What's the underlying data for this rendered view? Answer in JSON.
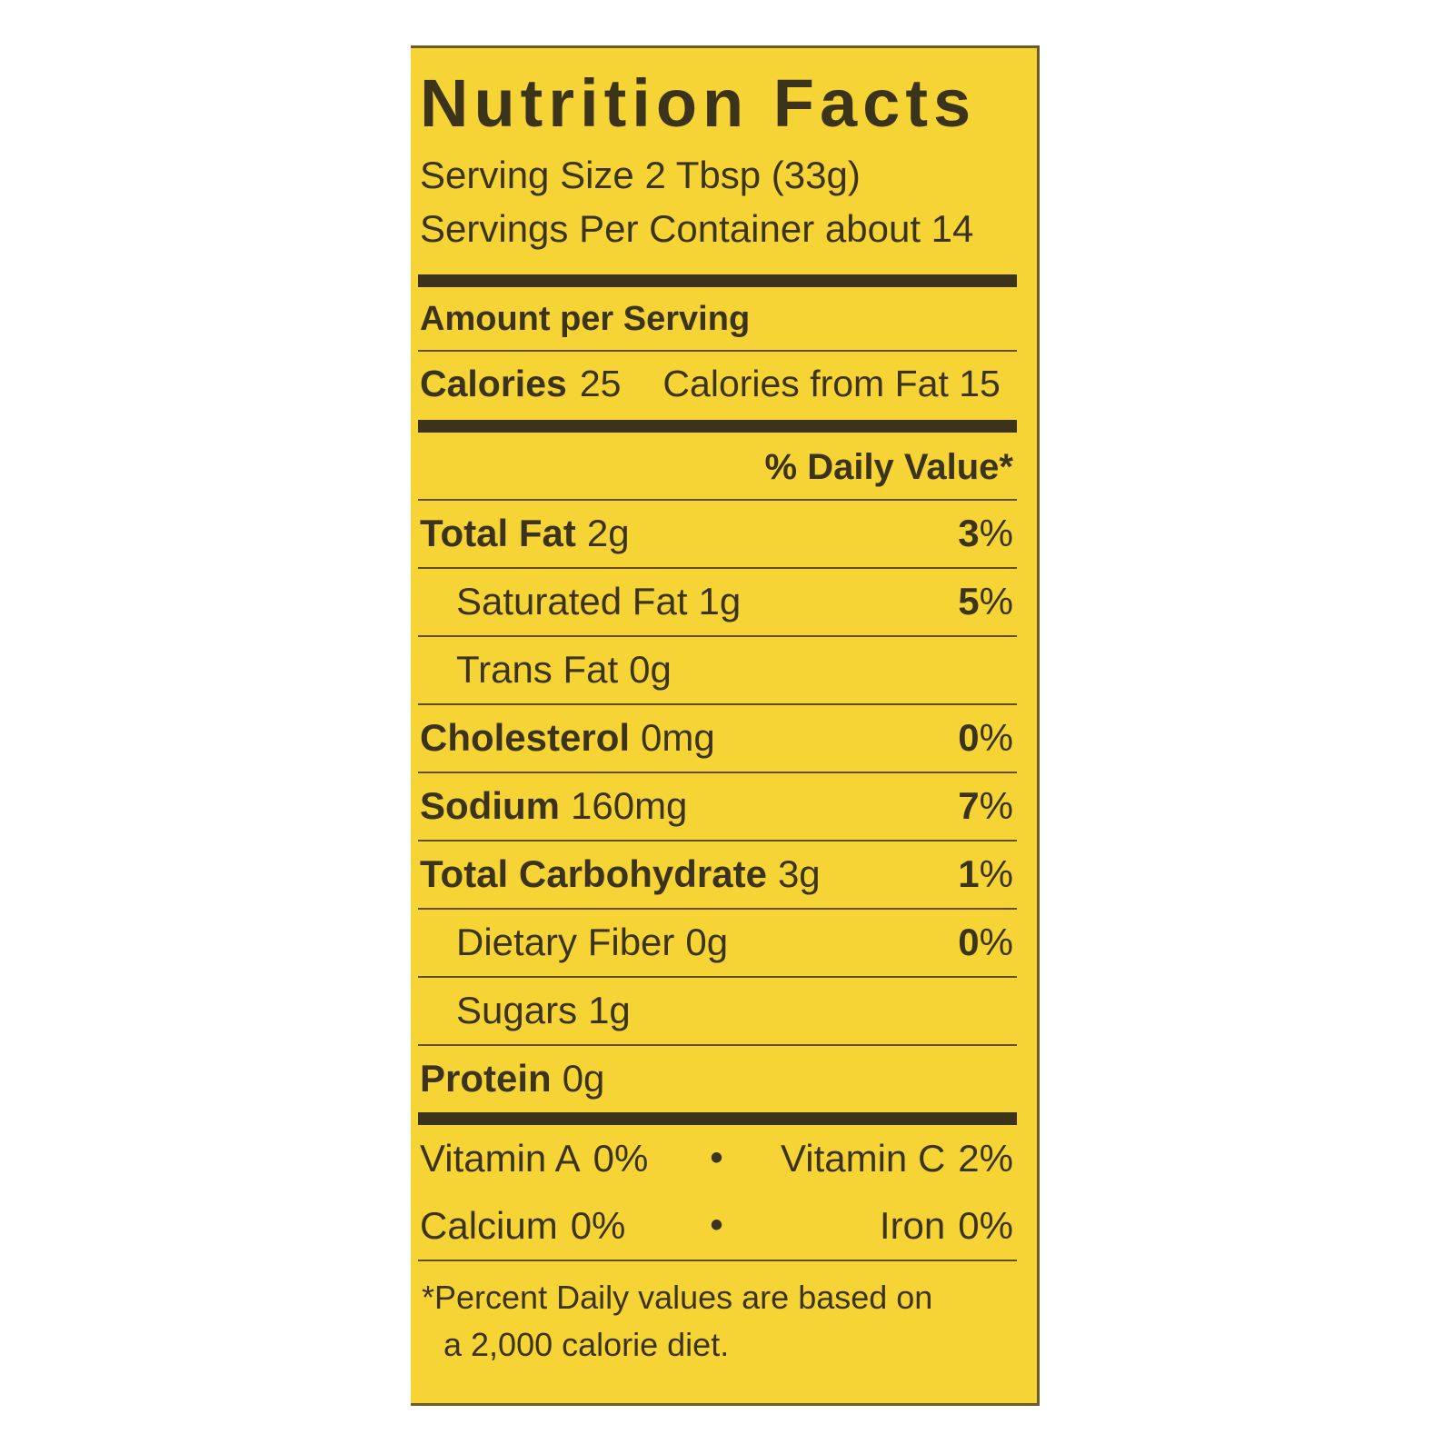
{
  "label": {
    "title": "Nutrition Facts",
    "serving_size": "Serving Size 2 Tbsp (33g)",
    "servings_per_container": "Servings Per Container about 14",
    "amount_per_serving": "Amount per Serving",
    "calories_label": "Calories",
    "calories_value": "25",
    "calories_from_fat": "Calories from Fat 15",
    "daily_value_header": "% Daily Value*",
    "percent_symbol": "%",
    "nutrients": [
      {
        "name": "Total Fat",
        "amount": "2g",
        "dv": "3"
      },
      {
        "name": "Saturated Fat",
        "amount": "1g",
        "dv": "5"
      },
      {
        "name": "Trans Fat",
        "amount": "0g",
        "dv": null
      },
      {
        "name": "Cholesterol",
        "amount": "0mg",
        "dv": "0"
      },
      {
        "name": "Sodium",
        "amount": "160mg",
        "dv": "7"
      },
      {
        "name": "Total Carbohydrate",
        "amount": "3g",
        "dv": "1"
      },
      {
        "name": "Dietary Fiber",
        "amount": "0g",
        "dv": "0"
      },
      {
        "name": "Sugars",
        "amount": "1g",
        "dv": null
      },
      {
        "name": "Protein",
        "amount": "0g",
        "dv": null
      }
    ],
    "vitamins": [
      {
        "name": "Vitamin A",
        "value": "0%"
      },
      {
        "name": "Vitamin C",
        "value": "2%"
      },
      {
        "name": "Calcium",
        "value": "0%"
      },
      {
        "name": "Iron",
        "value": "0%"
      }
    ],
    "bullet": "•",
    "footnote_line1": "*Percent Daily values are based on",
    "footnote_line2": "a 2,000 calorie diet.",
    "colors": {
      "background": "#f6d435",
      "ink": "#3c331b"
    }
  }
}
